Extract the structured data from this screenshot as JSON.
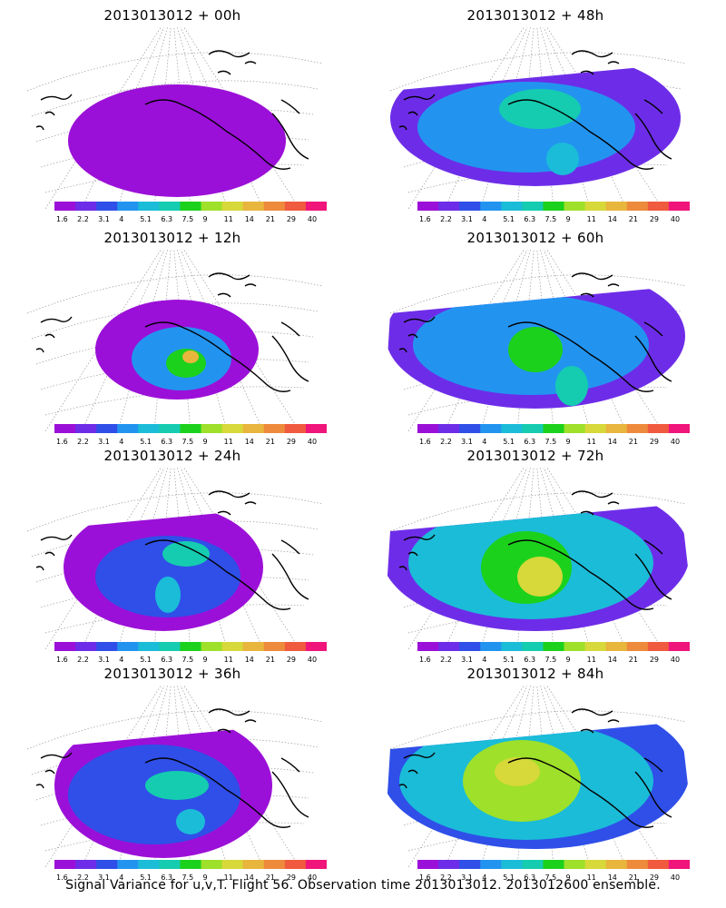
{
  "caption": "Signal Variance for u,v,T. Flight 56. Observation time 2013013012. 2013012600 ensemble.",
  "colorbar": {
    "labels": [
      "1.6",
      "2.2",
      "3.1",
      "4",
      "5.1",
      "6.3",
      "7.5",
      "9",
      "11",
      "14",
      "21",
      "29",
      "40"
    ],
    "colors": [
      "#9b10d8",
      "#6d2de8",
      "#2f4fe8",
      "#2294f0",
      "#1bbcd8",
      "#15ccb0",
      "#1cd11c",
      "#9ee02a",
      "#d7d83a",
      "#e8b53d",
      "#ee8a3c",
      "#f05a3e",
      "#f0157a"
    ]
  },
  "chart_data": [
    {
      "type": "heatmap",
      "title": "2013013012 + 00h",
      "forecast_hour": 0,
      "color_scale": "signal variance",
      "value_range": [
        1.6,
        40
      ]
    },
    {
      "type": "heatmap",
      "title": "2013013012 + 12h",
      "forecast_hour": 12,
      "color_scale": "signal variance",
      "value_range": [
        1.6,
        40
      ]
    },
    {
      "type": "heatmap",
      "title": "2013013012 + 24h",
      "forecast_hour": 24,
      "color_scale": "signal variance",
      "value_range": [
        1.6,
        40
      ]
    },
    {
      "type": "heatmap",
      "title": "2013013012 + 36h",
      "forecast_hour": 36,
      "color_scale": "signal variance",
      "value_range": [
        1.6,
        40
      ]
    },
    {
      "type": "heatmap",
      "title": "2013013012 + 48h",
      "forecast_hour": 48,
      "color_scale": "signal variance",
      "value_range": [
        1.6,
        40
      ]
    },
    {
      "type": "heatmap",
      "title": "2013013012 + 60h",
      "forecast_hour": 60,
      "color_scale": "signal variance",
      "value_range": [
        1.6,
        40
      ]
    },
    {
      "type": "heatmap",
      "title": "2013013012 + 72h",
      "forecast_hour": 72,
      "color_scale": "signal variance",
      "value_range": [
        1.6,
        40
      ]
    },
    {
      "type": "heatmap",
      "title": "2013013012 + 84h",
      "forecast_hour": 84,
      "color_scale": "signal variance",
      "value_range": [
        1.6,
        40
      ]
    }
  ]
}
